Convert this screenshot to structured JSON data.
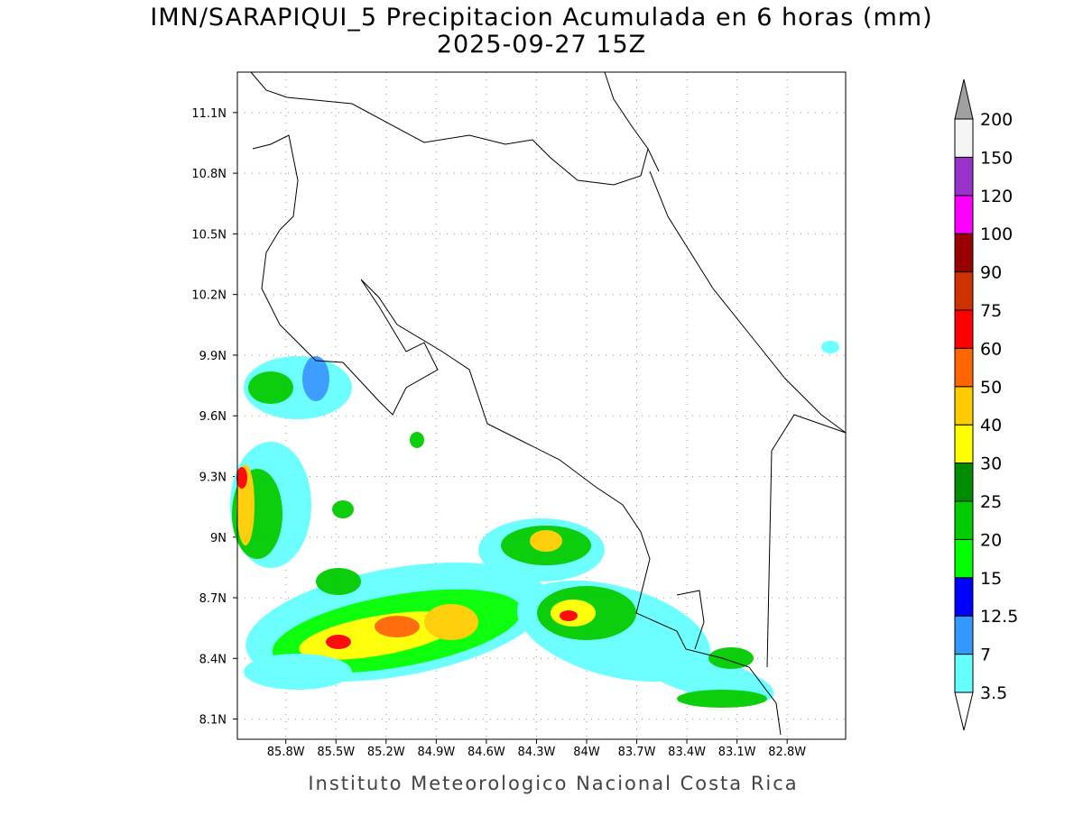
{
  "title": "IMN/SARAPIQUI_5 Precipitacion Acumulada en 6 horas (mm)",
  "subtitle": "2025-09-27 15Z",
  "footer": "Instituto Meteorologico Nacional Costa Rica",
  "map": {
    "lon_range": [
      -86.09,
      -82.45
    ],
    "lat_range": [
      8.0,
      11.3
    ],
    "lat_ticks": [
      {
        "value": 11.1,
        "label": "11.1N"
      },
      {
        "value": 10.8,
        "label": "10.8N"
      },
      {
        "value": 10.5,
        "label": "10.5N"
      },
      {
        "value": 10.2,
        "label": "10.2N"
      },
      {
        "value": 9.9,
        "label": "9.9N"
      },
      {
        "value": 9.6,
        "label": "9.6N"
      },
      {
        "value": 9.3,
        "label": "9.3N"
      },
      {
        "value": 9.0,
        "label": "9N"
      },
      {
        "value": 8.7,
        "label": "8.7N"
      },
      {
        "value": 8.4,
        "label": "8.4N"
      },
      {
        "value": 8.1,
        "label": "8.1N"
      }
    ],
    "lon_ticks": [
      {
        "value": -85.8,
        "label": "85.8W"
      },
      {
        "value": -85.5,
        "label": "85.5W"
      },
      {
        "value": -85.2,
        "label": "85.2W"
      },
      {
        "value": -84.9,
        "label": "84.9W"
      },
      {
        "value": -84.6,
        "label": "84.6W"
      },
      {
        "value": -84.3,
        "label": "84.3W"
      },
      {
        "value": -84.0,
        "label": "84W"
      },
      {
        "value": -83.7,
        "label": "83.7W"
      },
      {
        "value": -83.4,
        "label": "83.4W"
      },
      {
        "value": -83.1,
        "label": "83.1W"
      },
      {
        "value": -82.8,
        "label": "82.8W"
      }
    ]
  },
  "colorbar": {
    "levels": [
      3.5,
      7,
      12.5,
      15,
      20,
      25,
      30,
      40,
      50,
      60,
      75,
      90,
      100,
      120,
      150,
      200
    ],
    "colors": [
      "#66ffff",
      "#3399ff",
      "#0000ff",
      "#00ff00",
      "#00cc00",
      "#008c00",
      "#ffff00",
      "#ffcc00",
      "#ff6600",
      "#ff0000",
      "#cc3300",
      "#990000",
      "#ff00ff",
      "#9933cc",
      "#f5f5f5"
    ],
    "over_color": "#a0a0a0",
    "under_color": "#ffffff"
  }
}
